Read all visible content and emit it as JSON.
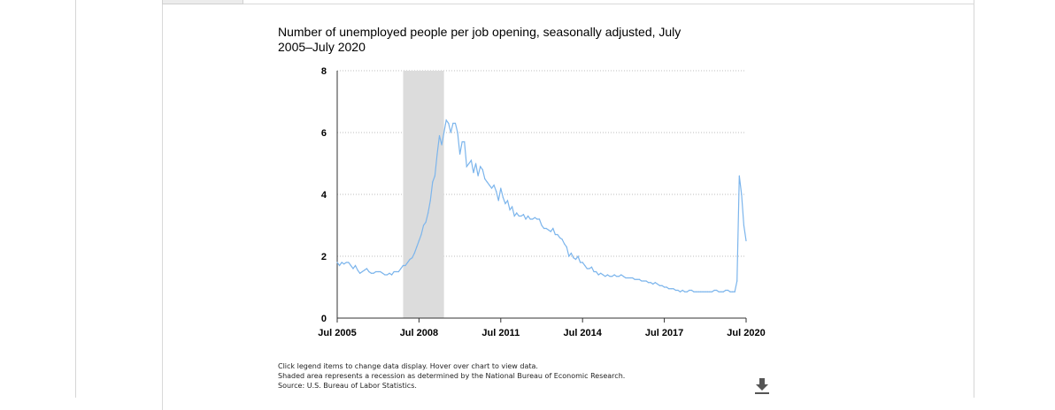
{
  "chart_data": {
    "type": "line",
    "title": "Number of unemployed people per job opening, seasonally adjusted, July 2005–July 2020",
    "xlabel": "",
    "ylabel": "",
    "ylim": [
      0,
      8
    ],
    "yticks": [
      "0",
      "2",
      "4",
      "6",
      "8"
    ],
    "xticks": [
      "Jul 2005",
      "Jul 2008",
      "Jul 2011",
      "Jul 2014",
      "Jul 2017",
      "Jul 2020"
    ],
    "x_range": [
      "Jul 2005",
      "Jul 2020"
    ],
    "grid": "horizontal dotted",
    "recession": {
      "start": "Dec 2007",
      "end": "Jun 2009"
    },
    "series": [
      {
        "color": "#7cb5ec",
        "points": [
          [
            "2005-07",
            1.8
          ],
          [
            "2005-08",
            1.7
          ],
          [
            "2005-09",
            1.8
          ],
          [
            "2005-10",
            1.75
          ],
          [
            "2005-11",
            1.8
          ],
          [
            "2005-12",
            1.8
          ],
          [
            "2006-01",
            1.7
          ],
          [
            "2006-02",
            1.6
          ],
          [
            "2006-03",
            1.7
          ],
          [
            "2006-04",
            1.55
          ],
          [
            "2006-05",
            1.45
          ],
          [
            "2006-06",
            1.5
          ],
          [
            "2006-07",
            1.55
          ],
          [
            "2006-08",
            1.6
          ],
          [
            "2006-09",
            1.5
          ],
          [
            "2006-10",
            1.45
          ],
          [
            "2006-11",
            1.45
          ],
          [
            "2006-12",
            1.5
          ],
          [
            "2007-01",
            1.5
          ],
          [
            "2007-02",
            1.5
          ],
          [
            "2007-03",
            1.45
          ],
          [
            "2007-04",
            1.4
          ],
          [
            "2007-05",
            1.4
          ],
          [
            "2007-06",
            1.45
          ],
          [
            "2007-07",
            1.4
          ],
          [
            "2007-08",
            1.5
          ],
          [
            "2007-09",
            1.5
          ],
          [
            "2007-10",
            1.5
          ],
          [
            "2007-11",
            1.6
          ],
          [
            "2007-12",
            1.7
          ],
          [
            "2008-01",
            1.7
          ],
          [
            "2008-02",
            1.8
          ],
          [
            "2008-03",
            1.9
          ],
          [
            "2008-04",
            1.95
          ],
          [
            "2008-05",
            2.1
          ],
          [
            "2008-06",
            2.3
          ],
          [
            "2008-07",
            2.5
          ],
          [
            "2008-08",
            2.7
          ],
          [
            "2008-09",
            3.0
          ],
          [
            "2008-10",
            3.1
          ],
          [
            "2008-11",
            3.4
          ],
          [
            "2008-12",
            3.8
          ],
          [
            "2009-01",
            4.4
          ],
          [
            "2009-02",
            4.6
          ],
          [
            "2009-03",
            5.3
          ],
          [
            "2009-04",
            5.9
          ],
          [
            "2009-05",
            5.6
          ],
          [
            "2009-06",
            6.0
          ],
          [
            "2009-07",
            6.4
          ],
          [
            "2009-08",
            6.3
          ],
          [
            "2009-09",
            6.0
          ],
          [
            "2009-10",
            6.3
          ],
          [
            "2009-11",
            6.3
          ],
          [
            "2009-12",
            6.0
          ],
          [
            "2010-01",
            5.3
          ],
          [
            "2010-02",
            5.7
          ],
          [
            "2010-03",
            5.7
          ],
          [
            "2010-04",
            4.9
          ],
          [
            "2010-05",
            5.0
          ],
          [
            "2010-06",
            5.1
          ],
          [
            "2010-07",
            4.7
          ],
          [
            "2010-08",
            5.0
          ],
          [
            "2010-09",
            4.6
          ],
          [
            "2010-10",
            4.9
          ],
          [
            "2010-11",
            4.8
          ],
          [
            "2010-12",
            4.5
          ],
          [
            "2011-01",
            4.4
          ],
          [
            "2011-02",
            4.3
          ],
          [
            "2011-03",
            4.2
          ],
          [
            "2011-04",
            4.3
          ],
          [
            "2011-05",
            4.1
          ],
          [
            "2011-06",
            3.8
          ],
          [
            "2011-07",
            4.2
          ],
          [
            "2011-08",
            3.9
          ],
          [
            "2011-09",
            3.7
          ],
          [
            "2011-10",
            3.8
          ],
          [
            "2011-11",
            3.5
          ],
          [
            "2011-12",
            3.6
          ],
          [
            "2012-01",
            3.3
          ],
          [
            "2012-02",
            3.4
          ],
          [
            "2012-03",
            3.3
          ],
          [
            "2012-04",
            3.3
          ],
          [
            "2012-05",
            3.35
          ],
          [
            "2012-06",
            3.2
          ],
          [
            "2012-07",
            3.3
          ],
          [
            "2012-08",
            3.2
          ],
          [
            "2012-09",
            3.2
          ],
          [
            "2012-10",
            3.25
          ],
          [
            "2012-11",
            3.2
          ],
          [
            "2012-12",
            3.2
          ],
          [
            "2013-01",
            3.0
          ],
          [
            "2013-02",
            2.9
          ],
          [
            "2013-03",
            2.9
          ],
          [
            "2013-04",
            2.85
          ],
          [
            "2013-05",
            2.8
          ],
          [
            "2013-06",
            2.9
          ],
          [
            "2013-07",
            2.7
          ],
          [
            "2013-08",
            2.7
          ],
          [
            "2013-09",
            2.6
          ],
          [
            "2013-10",
            2.55
          ],
          [
            "2013-11",
            2.4
          ],
          [
            "2013-12",
            2.3
          ],
          [
            "2014-01",
            2.0
          ],
          [
            "2014-02",
            2.1
          ],
          [
            "2014-03",
            1.95
          ],
          [
            "2014-04",
            1.9
          ],
          [
            "2014-05",
            2.0
          ],
          [
            "2014-06",
            1.8
          ],
          [
            "2014-07",
            1.8
          ],
          [
            "2014-08",
            1.7
          ],
          [
            "2014-09",
            1.6
          ],
          [
            "2014-10",
            1.6
          ],
          [
            "2014-11",
            1.65
          ],
          [
            "2014-12",
            1.5
          ],
          [
            "2015-01",
            1.5
          ],
          [
            "2015-02",
            1.4
          ],
          [
            "2015-03",
            1.45
          ],
          [
            "2015-04",
            1.4
          ],
          [
            "2015-05",
            1.35
          ],
          [
            "2015-06",
            1.4
          ],
          [
            "2015-07",
            1.35
          ],
          [
            "2015-08",
            1.35
          ],
          [
            "2015-09",
            1.4
          ],
          [
            "2015-10",
            1.35
          ],
          [
            "2015-11",
            1.35
          ],
          [
            "2015-12",
            1.4
          ],
          [
            "2016-01",
            1.35
          ],
          [
            "2016-02",
            1.3
          ],
          [
            "2016-03",
            1.3
          ],
          [
            "2016-04",
            1.3
          ],
          [
            "2016-05",
            1.3
          ],
          [
            "2016-06",
            1.25
          ],
          [
            "2016-07",
            1.25
          ],
          [
            "2016-08",
            1.25
          ],
          [
            "2016-09",
            1.2
          ],
          [
            "2016-10",
            1.2
          ],
          [
            "2016-11",
            1.2
          ],
          [
            "2016-12",
            1.15
          ],
          [
            "2017-01",
            1.15
          ],
          [
            "2017-02",
            1.1
          ],
          [
            "2017-03",
            1.15
          ],
          [
            "2017-04",
            1.1
          ],
          [
            "2017-05",
            1.05
          ],
          [
            "2017-06",
            1.05
          ],
          [
            "2017-07",
            1.0
          ],
          [
            "2017-08",
            1.0
          ],
          [
            "2017-09",
            0.95
          ],
          [
            "2017-10",
            0.95
          ],
          [
            "2017-11",
            0.95
          ],
          [
            "2017-12",
            0.9
          ],
          [
            "2018-01",
            0.9
          ],
          [
            "2018-02",
            0.85
          ],
          [
            "2018-03",
            0.9
          ],
          [
            "2018-04",
            0.85
          ],
          [
            "2018-05",
            0.85
          ],
          [
            "2018-06",
            0.9
          ],
          [
            "2018-07",
            0.9
          ],
          [
            "2018-08",
            0.85
          ],
          [
            "2018-09",
            0.85
          ],
          [
            "2018-10",
            0.85
          ],
          [
            "2018-11",
            0.85
          ],
          [
            "2018-12",
            0.85
          ],
          [
            "2019-01",
            0.85
          ],
          [
            "2019-02",
            0.85
          ],
          [
            "2019-03",
            0.85
          ],
          [
            "2019-04",
            0.85
          ],
          [
            "2019-05",
            0.9
          ],
          [
            "2019-06",
            0.9
          ],
          [
            "2019-07",
            0.85
          ],
          [
            "2019-08",
            0.85
          ],
          [
            "2019-09",
            0.85
          ],
          [
            "2019-10",
            0.9
          ],
          [
            "2019-11",
            0.9
          ],
          [
            "2019-12",
            0.85
          ],
          [
            "2020-01",
            0.85
          ],
          [
            "2020-02",
            0.85
          ],
          [
            "2020-03",
            1.2
          ],
          [
            "2020-04",
            4.6
          ],
          [
            "2020-05",
            4.0
          ],
          [
            "2020-06",
            3.0
          ],
          [
            "2020-07",
            2.5
          ]
        ]
      }
    ]
  },
  "notes": [
    "Click legend items to change data display. Hover over chart to view data.",
    "Shaded area represents a recession as determined by the National Bureau of Economic Research.",
    "Source: U.S. Bureau of Labor Statistics."
  ],
  "icons": {
    "download": "download-icon"
  }
}
